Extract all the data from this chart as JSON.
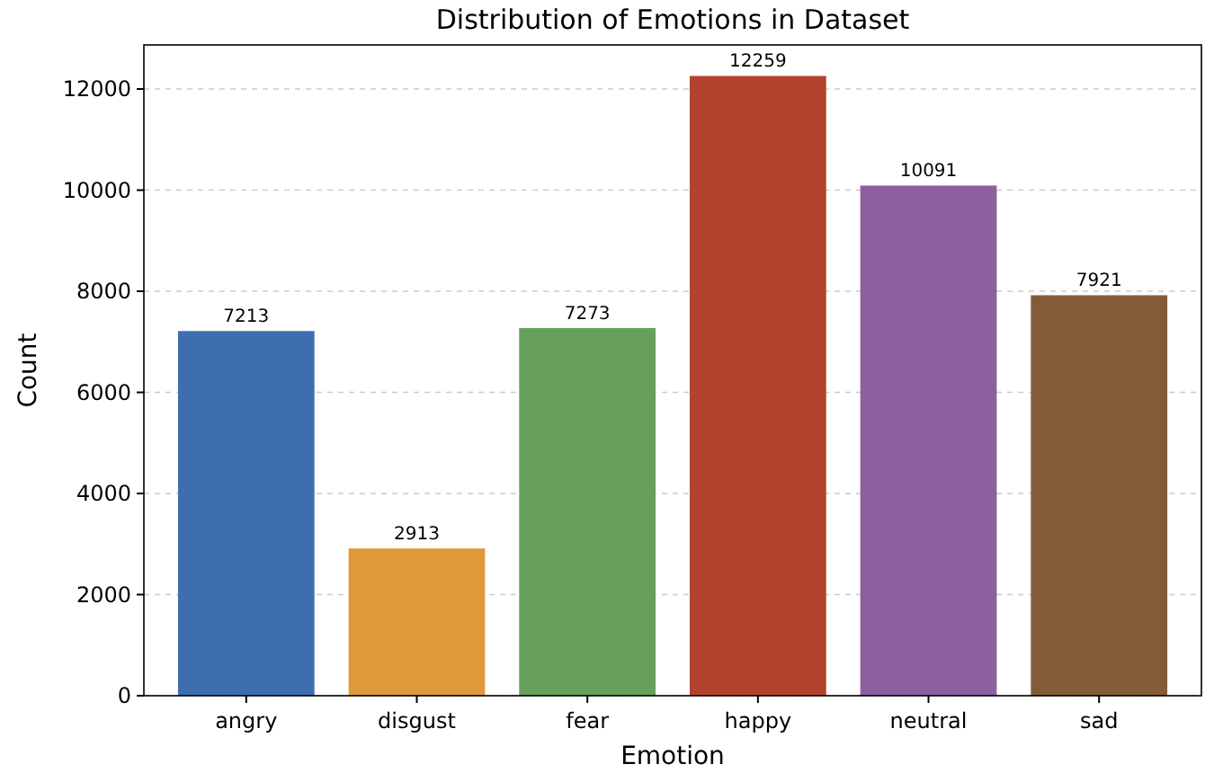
{
  "chart_data": {
    "type": "bar",
    "title": "Distribution of Emotions in Dataset",
    "xlabel": "Emotion",
    "ylabel": "Count",
    "categories": [
      "angry",
      "disgust",
      "fear",
      "happy",
      "neutral",
      "sad"
    ],
    "values": [
      7213,
      2913,
      7273,
      12259,
      10091,
      7921
    ],
    "colors": [
      "#3f6eb0",
      "#e0993a",
      "#66a05c",
      "#b3432e",
      "#8c609e",
      "#845b38"
    ],
    "ylim": [
      0,
      12872
    ],
    "yticks": [
      0,
      2000,
      4000,
      6000,
      8000,
      10000,
      12000
    ],
    "grid": "y",
    "data_labels": true
  }
}
